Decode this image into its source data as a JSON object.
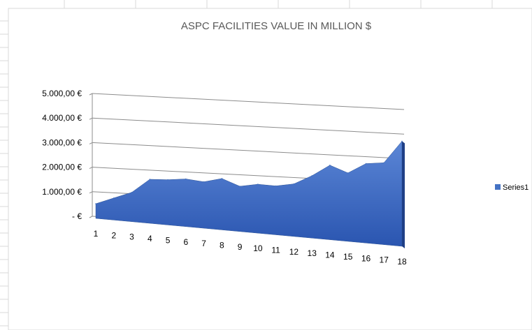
{
  "chart_data": {
    "type": "area",
    "title": "ASPC FACILITIES VALUE IN MILLION $",
    "x": [
      "1",
      "2",
      "3",
      "4",
      "5",
      "6",
      "7",
      "8",
      "9",
      "10",
      "11",
      "12",
      "13",
      "14",
      "15",
      "16",
      "17",
      "18"
    ],
    "series": [
      {
        "name": "Series1",
        "values": [
          600,
          900,
          1200,
          1800,
          1850,
          1950,
          1900,
          2100,
          1850,
          2000,
          2000,
          2150,
          2550,
          3050,
          2800,
          3250,
          3350,
          4300
        ],
        "color": "#4472C4"
      }
    ],
    "yticks": [
      "-   €",
      "1.000,00 €",
      "2.000,00 €",
      "3.000,00 €",
      "4.000,00 €",
      "5.000,00 €"
    ],
    "ylim": [
      0,
      5000
    ],
    "grid": true,
    "legend": "right",
    "style": "3d"
  }
}
